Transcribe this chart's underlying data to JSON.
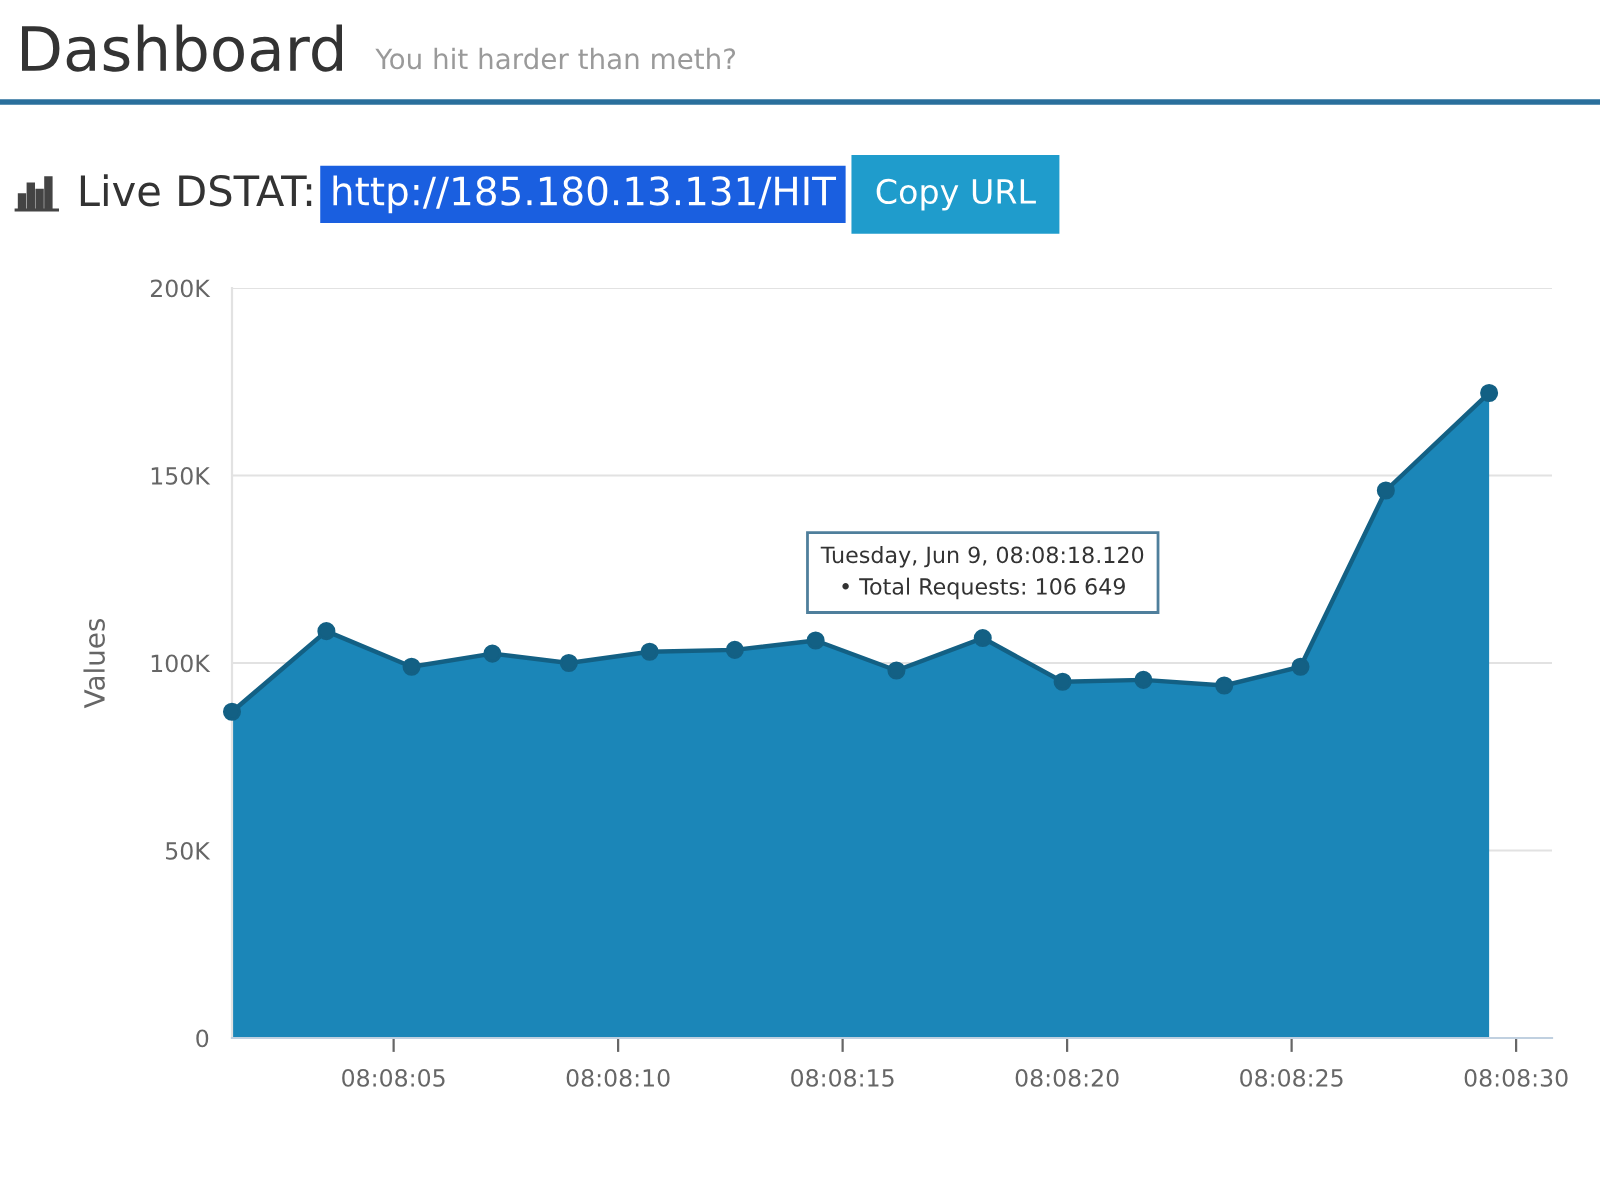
{
  "chart_data": {
    "type": "area",
    "title": "Dashboard",
    "subtitle": "You hit harder than meth?",
    "ylabel": "Values",
    "x": [
      8.133722,
      8.134306,
      8.134833,
      8.135333,
      8.135806,
      8.136306,
      8.136833,
      8.137333,
      8.137833,
      8.138367,
      8.138861,
      8.139361,
      8.139861,
      8.140333,
      8.140861,
      8.1415
    ],
    "values": [
      87000,
      108500,
      99000,
      102500,
      100000,
      103000,
      103500,
      106000,
      98000,
      106649,
      95000,
      95500,
      94000,
      99000,
      146000,
      172000
    ],
    "color": "#1b86b8",
    "xlim": [
      8.133722,
      8.141889
    ],
    "xticks": [
      {
        "value": 8.134722,
        "label": "08:08:05"
      },
      {
        "value": 8.136111,
        "label": "08:08:10"
      },
      {
        "value": 8.1375,
        "label": "08:08:15"
      },
      {
        "value": 8.138889,
        "label": "08:08:20"
      },
      {
        "value": 8.140278,
        "label": "08:08:25"
      },
      {
        "value": 8.141667,
        "label": "08:08:30"
      }
    ],
    "ylim": [
      0,
      200000
    ],
    "yticks": [
      0,
      {
        "value": 50000,
        "label": "50K"
      },
      {
        "value": 100000,
        "label": "100K"
      },
      {
        "value": 150000,
        "label": "150K"
      },
      {
        "value": 200000,
        "label": "200K"
      }
    ],
    "grid": "y",
    "marker": "circle",
    "line_style": "solid",
    "annotations": [
      "Live DSTAT:",
      "http://185.180.13.131/HIT",
      "Copy URL",
      {
        "text": "Tuesday, Jun 9, 08:08:18.120\n• Total Requests: 106 649",
        "x": 8.138367,
        "y": 106649
      }
    ]
  }
}
